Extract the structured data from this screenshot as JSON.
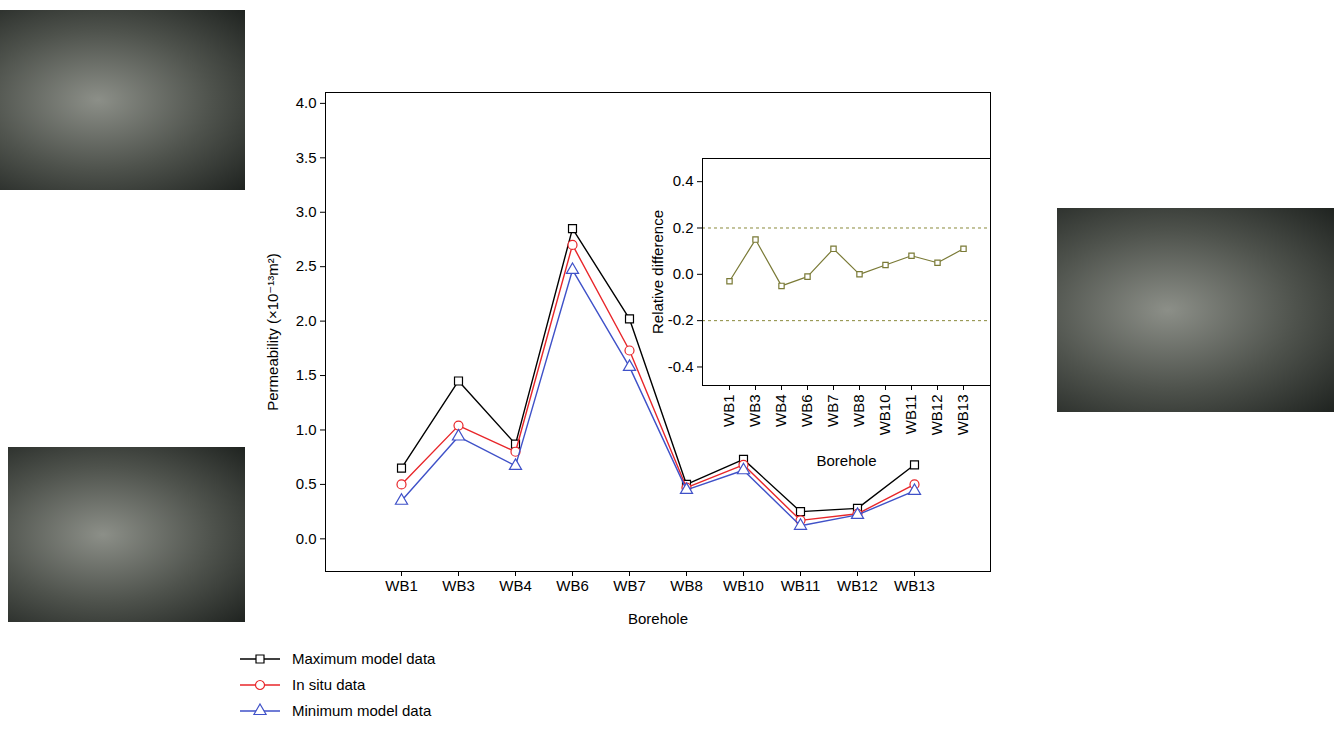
{
  "chart_data": [
    {
      "type": "line",
      "x_label": "Borehole",
      "y_label": "Permeability (×10⁻¹³m²)",
      "categories": [
        "WB1",
        "WB3",
        "WB4",
        "WB6",
        "WB7",
        "WB8",
        "WB10",
        "WB11",
        "WB12",
        "WB13"
      ],
      "series": [
        {
          "name": "Maximum model data",
          "color": "#000000",
          "marker": "square",
          "values": [
            0.65,
            1.45,
            0.87,
            2.85,
            2.02,
            0.5,
            0.73,
            0.25,
            0.28,
            0.68
          ]
        },
        {
          "name": "In situ data",
          "color": "#e8262a",
          "marker": "circle",
          "values": [
            0.5,
            1.04,
            0.8,
            2.7,
            1.73,
            0.47,
            0.68,
            0.17,
            0.23,
            0.5
          ]
        },
        {
          "name": "Minimum model data",
          "color": "#3f51c8",
          "marker": "triangle",
          "values": [
            0.35,
            0.94,
            0.67,
            2.47,
            1.58,
            0.45,
            0.63,
            0.12,
            0.22,
            0.44
          ]
        }
      ],
      "ylim": [
        -0.3,
        4.1
      ],
      "yticks": [
        {
          "value": 0,
          "label": "0.0"
        },
        0.5,
        {
          "value": 1,
          "label": "1.0"
        },
        1.5,
        {
          "value": 2,
          "label": "2.0"
        },
        2.5,
        {
          "value": 3,
          "label": "3.0"
        },
        3.5,
        {
          "value": 4,
          "label": "4.0"
        }
      ],
      "legend": "bottom"
    },
    {
      "type": "line",
      "x_label": "Borehole",
      "y_label": "Relative difference",
      "categories": [
        "WB1",
        "WB3",
        "WB4",
        "WB6",
        "WB7",
        "WB8",
        "WB10",
        "WB11",
        "WB12",
        "WB13"
      ],
      "series": [
        {
          "color": "#7a7a36",
          "marker": "square",
          "values": [
            -0.03,
            0.15,
            -0.05,
            -0.01,
            0.11,
            0.0,
            0.04,
            0.08,
            0.05,
            0.11
          ]
        }
      ],
      "thresholds": [
        -0.2,
        0.2
      ],
      "ylim": [
        -0.48,
        0.5
      ],
      "yticks": [
        -0.4,
        -0.2,
        {
          "value": 0,
          "label": "0.0"
        },
        0.2,
        0.4
      ]
    }
  ]
}
